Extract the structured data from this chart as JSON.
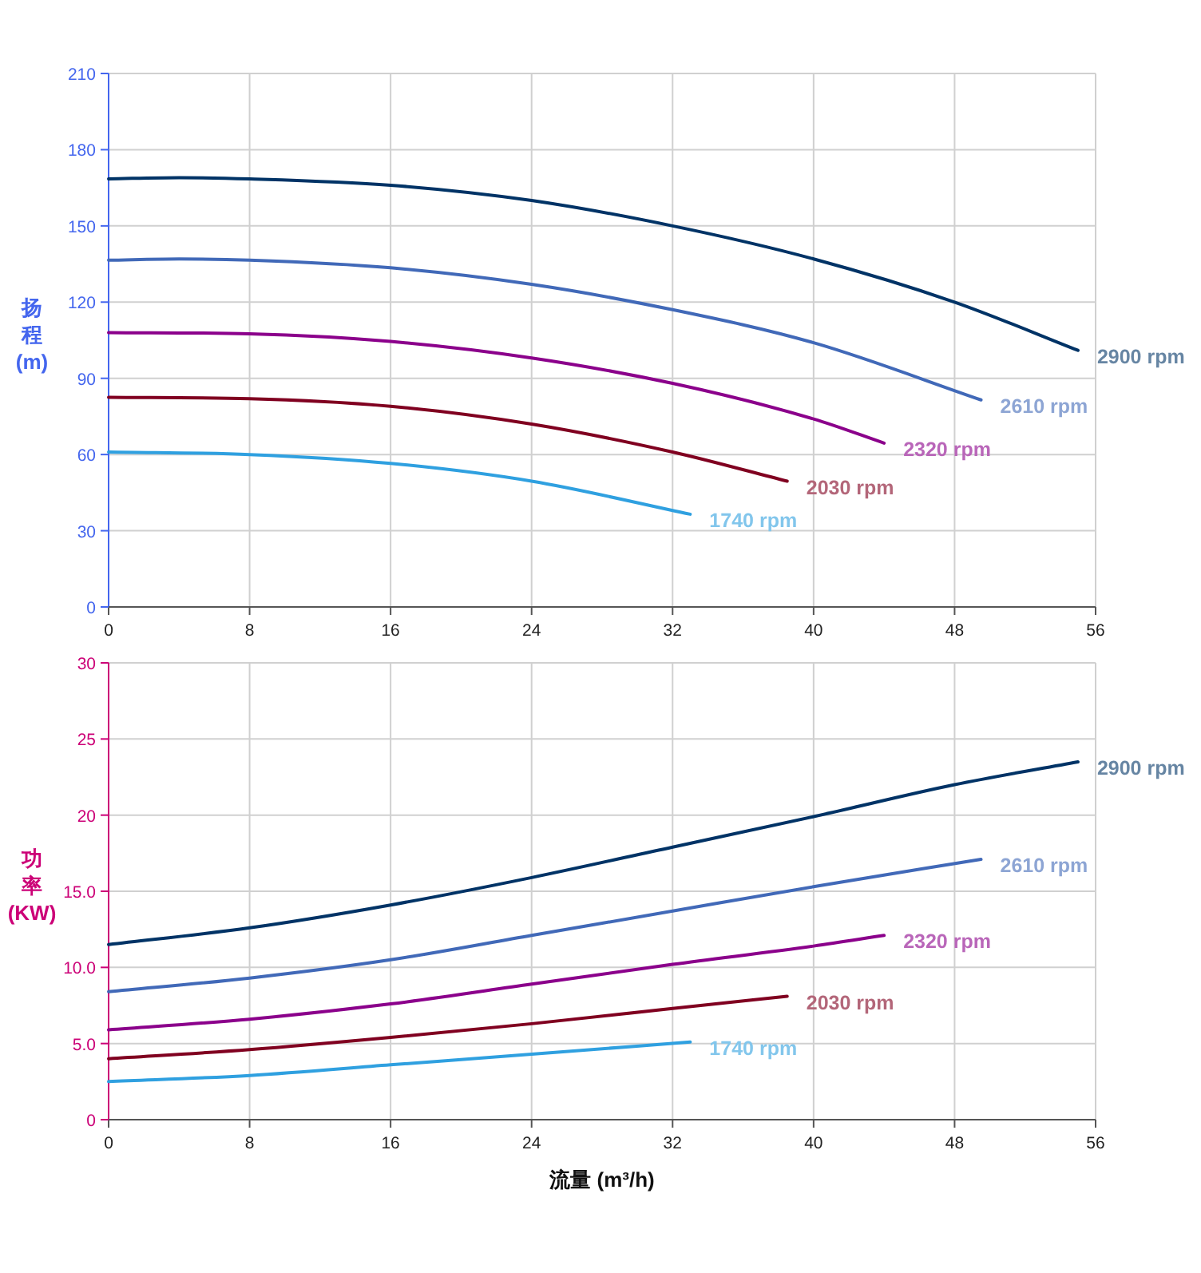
{
  "chart_data": [
    {
      "type": "line",
      "ylabel": "扬程 (m)",
      "xlim": [
        0,
        56
      ],
      "xticks": [
        0,
        8,
        16,
        24,
        32,
        40,
        48,
        56
      ],
      "ylim": [
        0,
        210
      ],
      "yticks": [
        0,
        30,
        60,
        90,
        120,
        150,
        180,
        210
      ],
      "grid": true,
      "series": [
        {
          "name": "2900 rpm",
          "color": "#003366",
          "x": [
            0,
            4,
            8,
            16,
            24,
            32,
            40,
            48,
            55
          ],
          "values": [
            168.5,
            169,
            168.5,
            166,
            160,
            150,
            137,
            120,
            101
          ]
        },
        {
          "name": "2610 rpm",
          "color": "#4169b8",
          "x": [
            0,
            4,
            8,
            16,
            24,
            32,
            40,
            49.5
          ],
          "values": [
            136.5,
            137,
            136.5,
            133.5,
            127,
            117,
            104,
            81.5
          ]
        },
        {
          "name": "2320 rpm",
          "color": "#8b008b",
          "x": [
            0,
            8,
            16,
            24,
            32,
            40,
            44
          ],
          "values": [
            108,
            107.5,
            104.5,
            98,
            88,
            74,
            64.5
          ]
        },
        {
          "name": "2030 rpm",
          "color": "#800020",
          "x": [
            0,
            8,
            16,
            24,
            32,
            38.5
          ],
          "values": [
            82.5,
            82,
            79,
            72,
            61,
            49.5
          ]
        },
        {
          "name": "1740 rpm",
          "color": "#2fa0e0",
          "x": [
            0,
            8,
            16,
            24,
            33
          ],
          "values": [
            61,
            60,
            56.5,
            49.5,
            36.5
          ]
        }
      ]
    },
    {
      "type": "line",
      "xlabel": "流量 (m³/h)",
      "ylabel": "功率 (KW)",
      "xlim": [
        0,
        56
      ],
      "xticks": [
        0,
        8,
        16,
        24,
        32,
        40,
        48,
        56
      ],
      "ylim": [
        0,
        30
      ],
      "yticks": [
        0,
        {
          "value": 5,
          "label": "5.0"
        },
        {
          "value": 10,
          "label": "10.0"
        },
        {
          "value": 15,
          "label": "15.0"
        },
        20,
        25,
        30
      ],
      "grid": true,
      "series": [
        {
          "name": "2900 rpm",
          "color": "#003366",
          "x": [
            0,
            8,
            16,
            24,
            32,
            40,
            48,
            55
          ],
          "values": [
            11.5,
            12.6,
            14.1,
            15.9,
            17.9,
            19.9,
            22,
            23.5
          ]
        },
        {
          "name": "2610 rpm",
          "color": "#4169b8",
          "x": [
            0,
            8,
            16,
            24,
            32,
            40,
            49.5
          ],
          "values": [
            8.4,
            9.3,
            10.5,
            12.1,
            13.7,
            15.3,
            17.1
          ]
        },
        {
          "name": "2320 rpm",
          "color": "#8b008b",
          "x": [
            0,
            8,
            16,
            24,
            32,
            40,
            44
          ],
          "values": [
            5.9,
            6.6,
            7.6,
            8.9,
            10.2,
            11.4,
            12.1
          ]
        },
        {
          "name": "2030 rpm",
          "color": "#800020",
          "x": [
            0,
            8,
            16,
            24,
            32,
            38.5
          ],
          "values": [
            4,
            4.6,
            5.4,
            6.3,
            7.3,
            8.1
          ]
        },
        {
          "name": "1740 rpm",
          "color": "#2fa0e0",
          "x": [
            0,
            8,
            16,
            24,
            33
          ],
          "values": [
            2.5,
            2.9,
            3.6,
            4.3,
            5.1
          ]
        }
      ]
    }
  ]
}
